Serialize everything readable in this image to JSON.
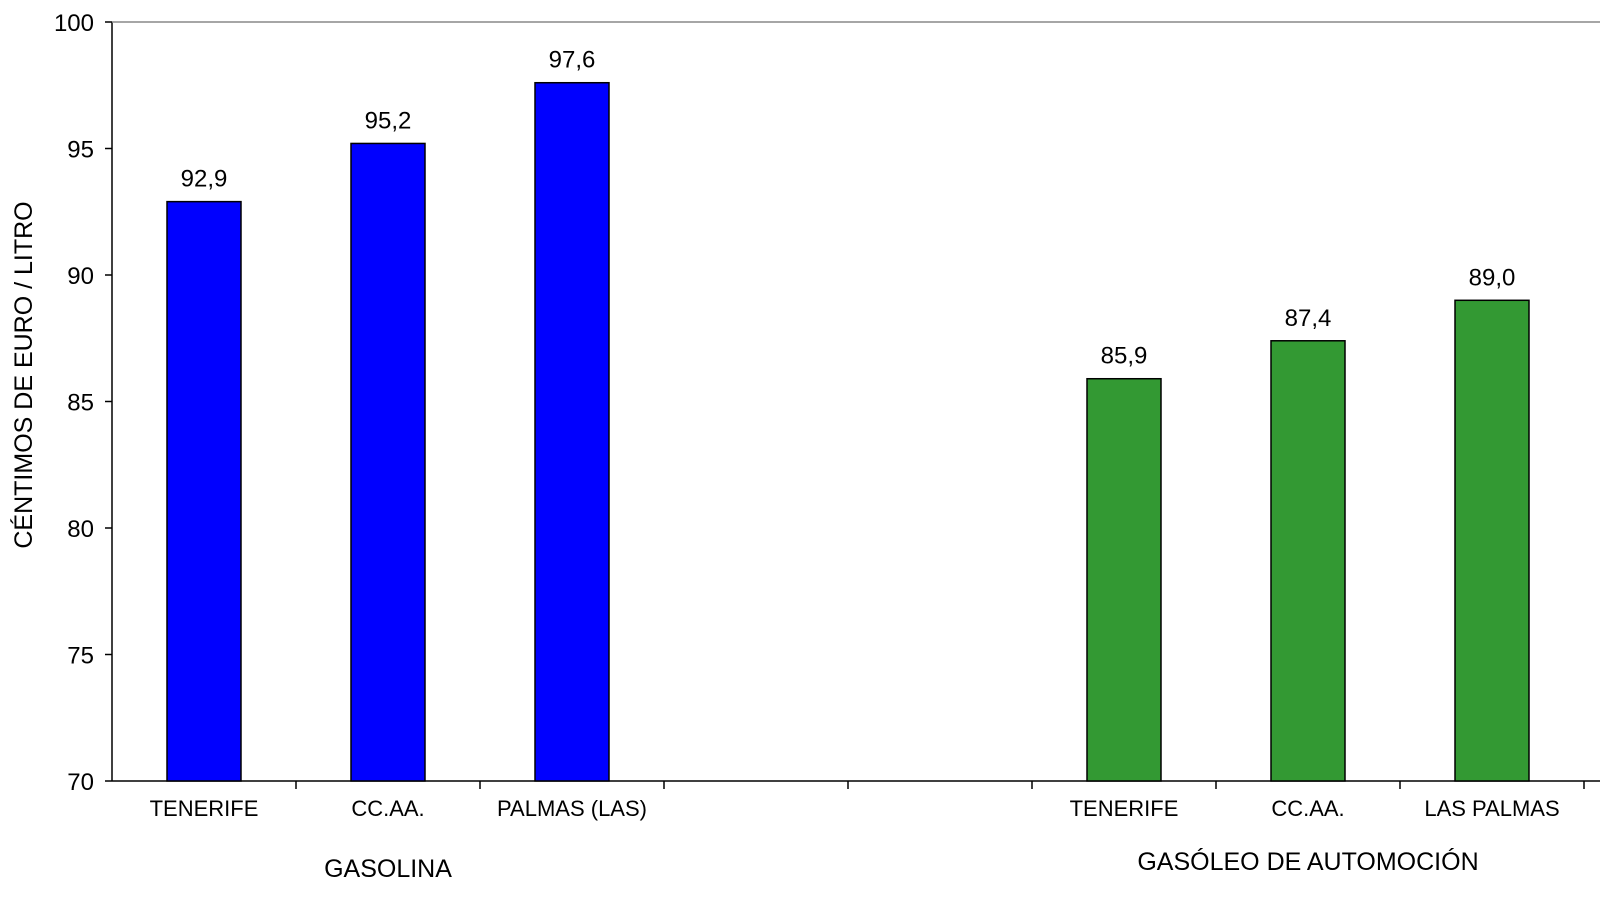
{
  "chart_data": {
    "type": "bar",
    "title": "",
    "ylabel": "CÉNTIMOS DE EURO / LITRO",
    "xlabel": "",
    "ylim": [
      70,
      100
    ],
    "yticks": [
      "70",
      "75",
      "80",
      "85",
      "90",
      "95",
      "100"
    ],
    "grid": false,
    "legend": "none",
    "groups": [
      {
        "label": "GASOLINA",
        "color": "#0000FF",
        "categories": [
          "TENERIFE",
          "CC.AA.",
          "PALMAS (LAS)"
        ],
        "values": [
          92.9,
          95.2,
          97.6
        ],
        "data_labels": [
          "92,9",
          "95,2",
          "97,6"
        ]
      },
      {
        "label": "GASÓLEO DE AUTOMOCIÓN",
        "color": "#339933",
        "categories": [
          "TENERIFE",
          "CC.AA.",
          "LAS PALMAS"
        ],
        "values": [
          85.9,
          87.4,
          89.0
        ],
        "data_labels": [
          "85,9",
          "87,4",
          "89,0"
        ]
      }
    ]
  }
}
